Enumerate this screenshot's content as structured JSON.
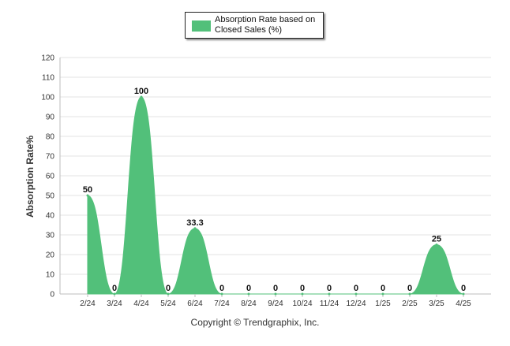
{
  "chart_data": {
    "type": "area",
    "title": "",
    "xlabel": "",
    "ylabel": "Absorption Rate%",
    "ylim": [
      0,
      120
    ],
    "yticks": [
      0,
      10,
      20,
      30,
      40,
      50,
      60,
      70,
      80,
      90,
      100,
      110,
      120
    ],
    "grid": true,
    "legend_position": "top-center",
    "categories": [
      "2/24",
      "3/24",
      "4/24",
      "5/24",
      "6/24",
      "7/24",
      "8/24",
      "9/24",
      "10/24",
      "11/24",
      "12/24",
      "1/25",
      "2/25",
      "3/25",
      "4/25"
    ],
    "series": [
      {
        "name": "Absorption Rate based on Closed Sales (%)",
        "color": "#52c07a",
        "values": [
          50,
          0,
          100,
          0,
          33.3,
          0,
          0,
          0,
          0,
          0,
          0,
          0,
          0,
          25,
          0
        ],
        "labels": [
          "50",
          "0",
          "100",
          "0",
          "33.3",
          "0",
          "0",
          "0",
          "0",
          "0",
          "0",
          "0",
          "0",
          "25",
          "0"
        ]
      }
    ]
  },
  "footer": "Copyright © Trendgraphix, Inc."
}
